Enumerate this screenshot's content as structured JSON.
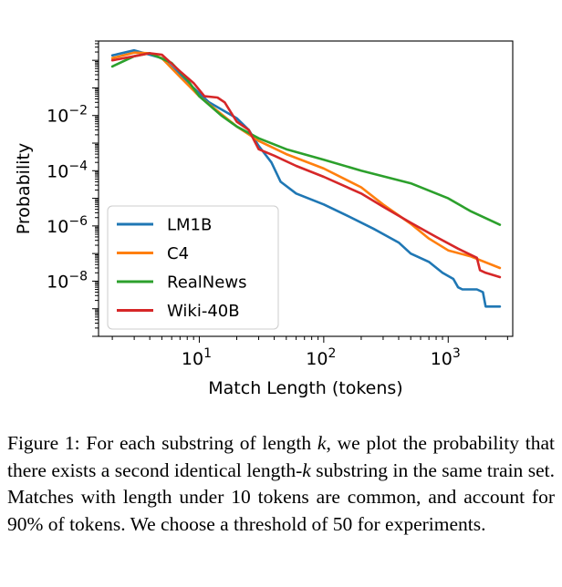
{
  "chart_data": {
    "type": "line",
    "xlabel": "Match Length (tokens)",
    "ylabel": "Probability",
    "xscale": "log",
    "yscale": "log",
    "xlim": [
      1.55,
      3300
    ],
    "ylim": [
      1e-10,
      5
    ],
    "x_ticks": [
      {
        "value": 10,
        "base": "10",
        "exp": "1"
      },
      {
        "value": 100,
        "base": "10",
        "exp": "2"
      },
      {
        "value": 1000,
        "base": "10",
        "exp": "3"
      }
    ],
    "y_ticks": [
      {
        "value": 0.01,
        "base": "10",
        "exp": "−2"
      },
      {
        "value": 0.0001,
        "base": "10",
        "exp": "−4"
      },
      {
        "value": 1e-06,
        "base": "10",
        "exp": "−6"
      },
      {
        "value": 1e-08,
        "base": "10",
        "exp": "−8"
      }
    ],
    "grid": false,
    "legend_position": "lower-left",
    "series": [
      {
        "name": "LM1B",
        "color": "#1f77b4",
        "points": [
          [
            2,
            1.5
          ],
          [
            3,
            2.3
          ],
          [
            5,
            1.2
          ],
          [
            7,
            0.3
          ],
          [
            9,
            0.1
          ],
          [
            12,
            0.03
          ],
          [
            20,
            0.008
          ],
          [
            25,
            0.003
          ],
          [
            30,
            0.0008
          ],
          [
            38,
            0.0002
          ],
          [
            45,
            4e-05
          ],
          [
            60,
            1.5e-05
          ],
          [
            100,
            6e-06
          ],
          [
            150,
            2.5e-06
          ],
          [
            250,
            8e-07
          ],
          [
            400,
            2.5e-07
          ],
          [
            500,
            1e-07
          ],
          [
            700,
            5e-08
          ],
          [
            900,
            2e-08
          ],
          [
            1100,
            1.2e-08
          ],
          [
            1200,
            6e-09
          ],
          [
            1300,
            5e-09
          ],
          [
            1700,
            5e-09
          ],
          [
            1900,
            4e-09
          ],
          [
            2000,
            1.2e-09
          ],
          [
            2600,
            1.2e-09
          ]
        ]
      },
      {
        "name": "C4",
        "color": "#ff7f0e",
        "points": [
          [
            2,
            1.2
          ],
          [
            3,
            1.9
          ],
          [
            4,
            1.8
          ],
          [
            5,
            1.2
          ],
          [
            7,
            0.25
          ],
          [
            10,
            0.05
          ],
          [
            20,
            0.004
          ],
          [
            30,
            0.0012
          ],
          [
            50,
            0.0004
          ],
          [
            100,
            0.00012
          ],
          [
            200,
            2.5e-05
          ],
          [
            300,
            6e-06
          ],
          [
            500,
            1.2e-06
          ],
          [
            700,
            3.5e-07
          ],
          [
            1000,
            1.3e-07
          ],
          [
            1500,
            8e-08
          ],
          [
            2600,
            3e-08
          ]
        ]
      },
      {
        "name": "RealNews",
        "color": "#2ca02c",
        "points": [
          [
            2,
            0.6
          ],
          [
            3,
            1.4
          ],
          [
            4,
            1.8
          ],
          [
            6,
            0.8
          ],
          [
            8,
            0.2
          ],
          [
            10,
            0.05
          ],
          [
            15,
            0.01
          ],
          [
            20,
            0.004
          ],
          [
            30,
            0.0015
          ],
          [
            50,
            0.0006
          ],
          [
            100,
            0.00025
          ],
          [
            200,
            0.0001
          ],
          [
            500,
            3.5e-05
          ],
          [
            1000,
            1e-05
          ],
          [
            1500,
            3.5e-06
          ],
          [
            2600,
            1.1e-06
          ]
        ]
      },
      {
        "name": "Wiki-40B",
        "color": "#d62728",
        "points": [
          [
            2,
            1.0
          ],
          [
            3,
            1.4
          ],
          [
            4,
            1.8
          ],
          [
            5,
            1.6
          ],
          [
            7,
            0.4
          ],
          [
            9,
            0.15
          ],
          [
            11,
            0.05
          ],
          [
            14,
            0.045
          ],
          [
            16,
            0.03
          ],
          [
            20,
            0.006
          ],
          [
            25,
            0.003
          ],
          [
            30,
            0.0006
          ],
          [
            40,
            0.00035
          ],
          [
            60,
            0.00015
          ],
          [
            100,
            6e-05
          ],
          [
            200,
            1.5e-05
          ],
          [
            300,
            5e-06
          ],
          [
            500,
            1.3e-06
          ],
          [
            800,
            4e-07
          ],
          [
            1200,
            1.5e-07
          ],
          [
            1700,
            7e-08
          ],
          [
            1800,
            2.5e-08
          ],
          [
            2000,
            2e-08
          ],
          [
            2600,
            1.4e-08
          ]
        ]
      }
    ]
  },
  "caption": {
    "segments": [
      {
        "text": "Figure 1: For each substring of length ",
        "italic": false
      },
      {
        "text": "k",
        "italic": true
      },
      {
        "text": ", we plot the probability that there exists a second identical length-",
        "italic": false
      },
      {
        "text": "k",
        "italic": true
      },
      {
        "text": " substring in the same train set. Matches with length under 10 tokens are common, and account for 90% of tokens. We choose a threshold of 50 for experiments.",
        "italic": false
      }
    ]
  }
}
